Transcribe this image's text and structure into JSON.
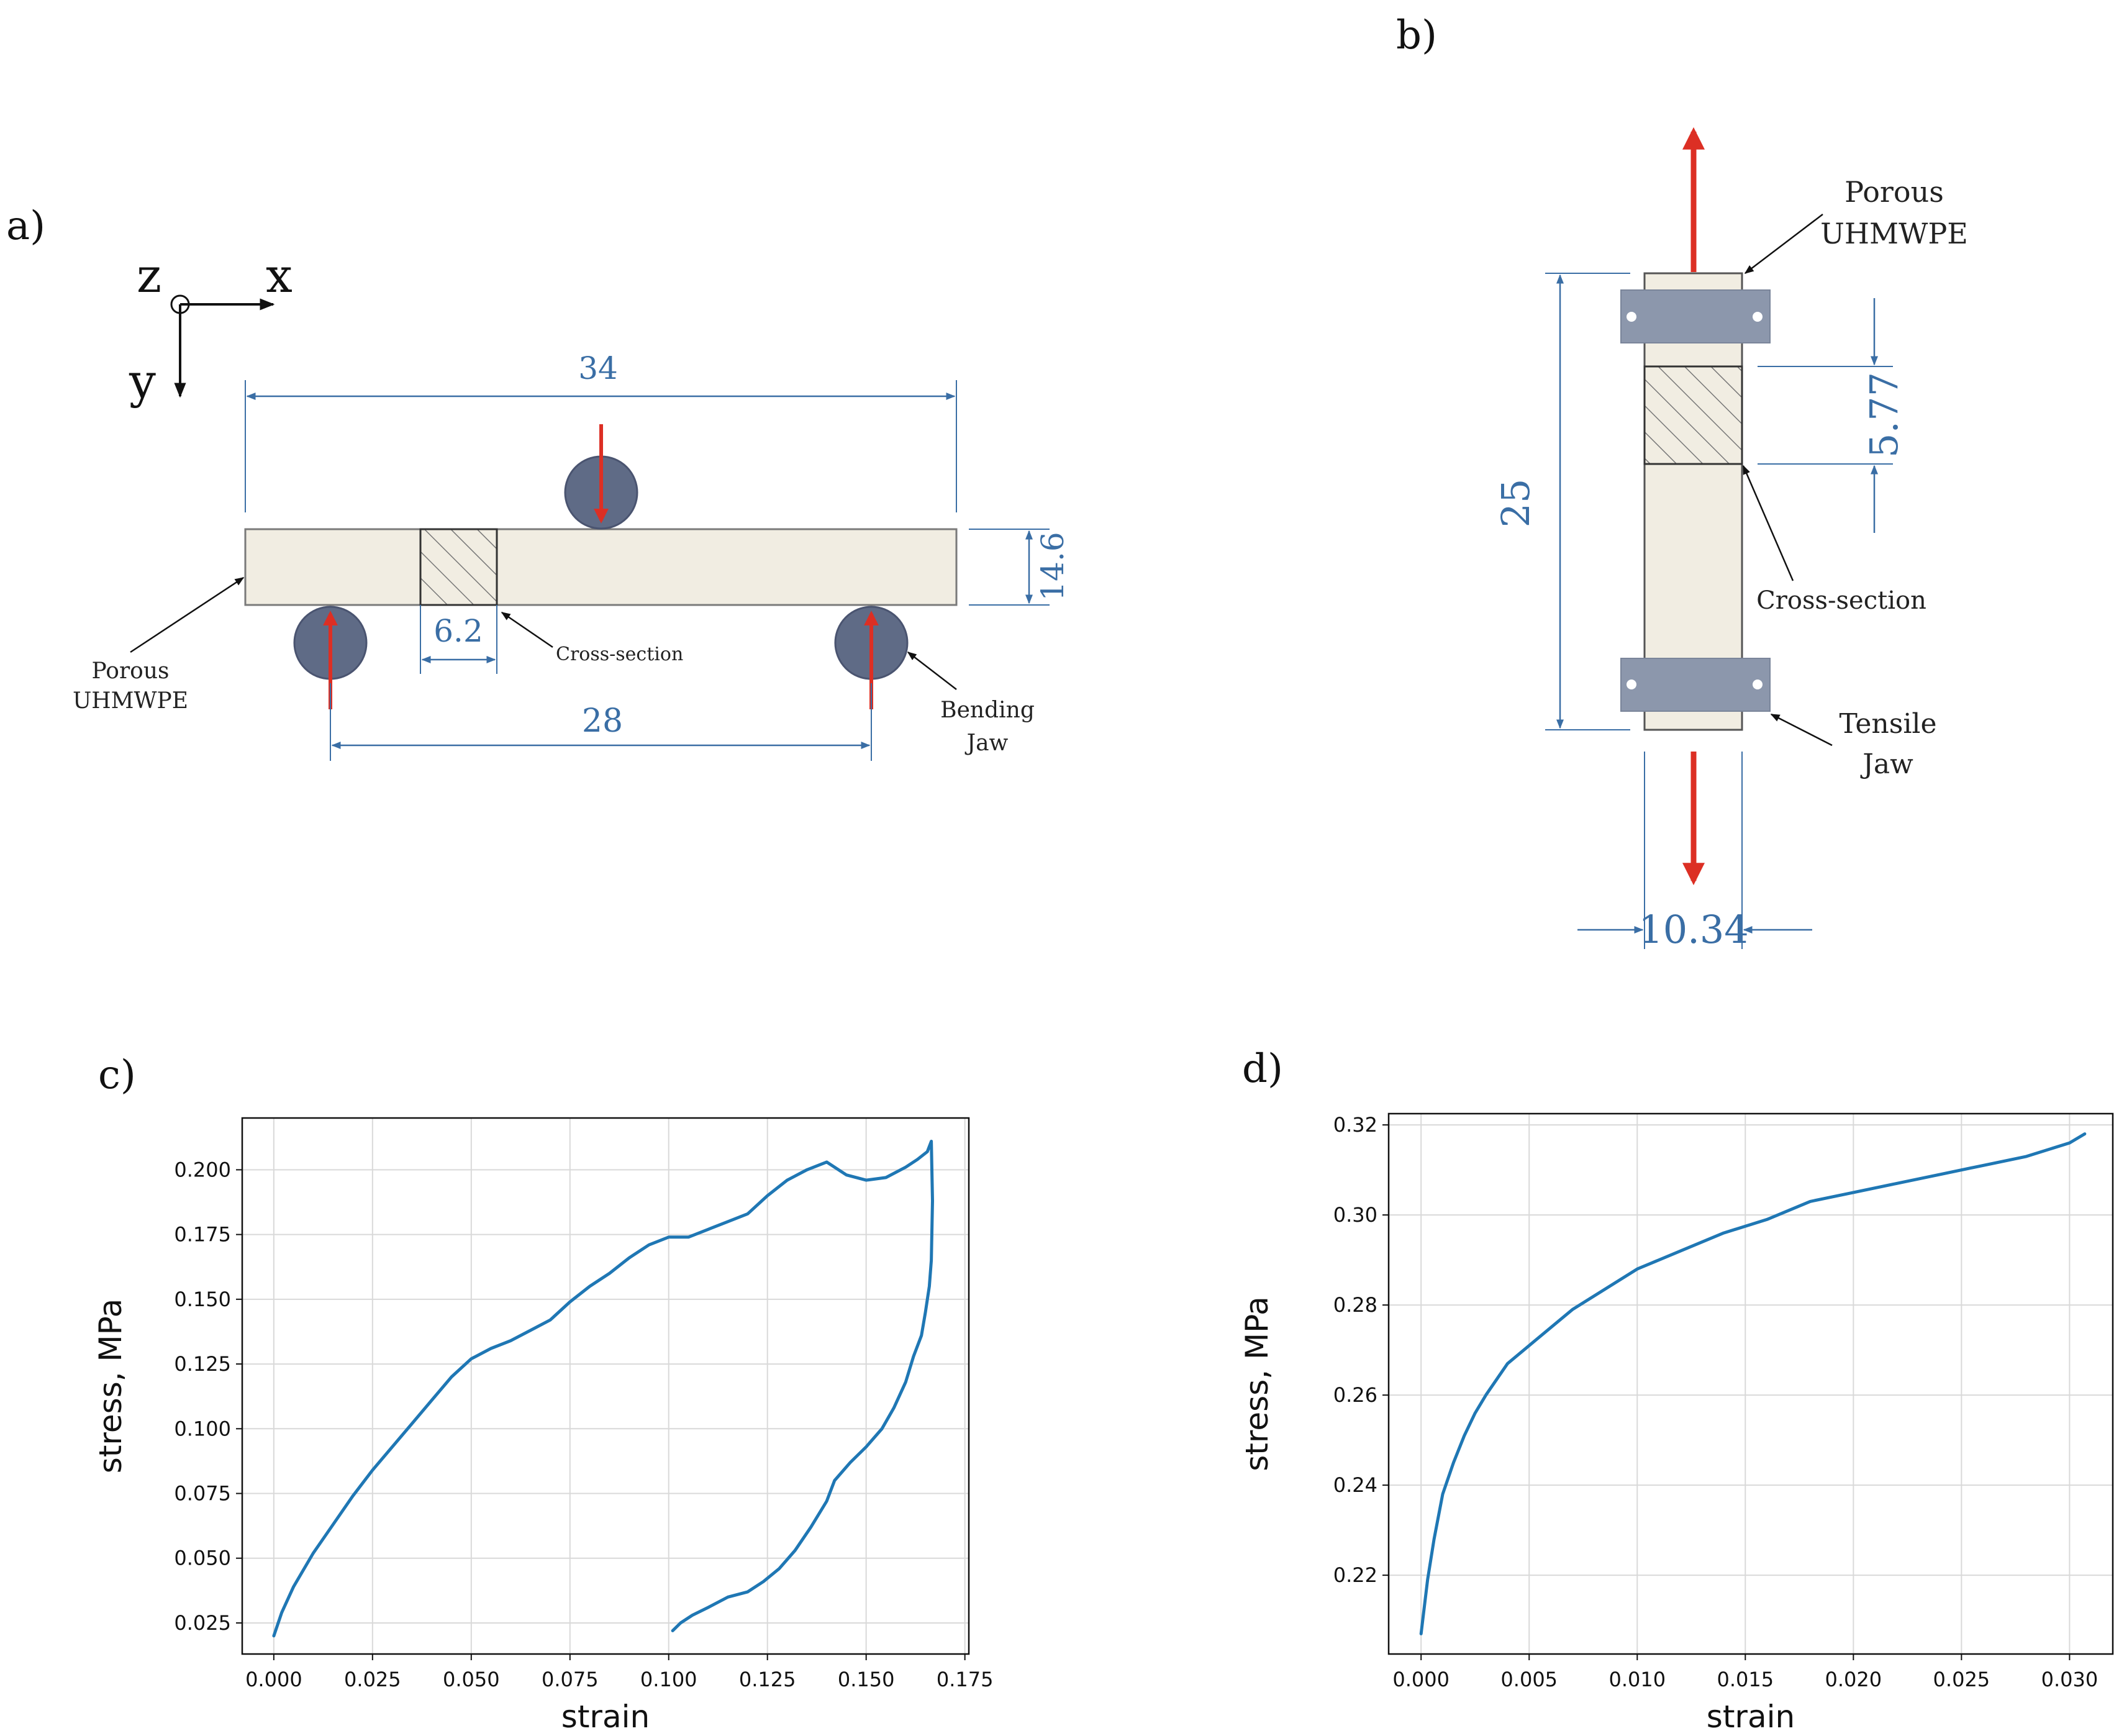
{
  "colors": {
    "dimension": "#3a6ea5",
    "force_arrow": "#dc2f24",
    "jaw_roller": "#5f6b86",
    "jaw_plate": "#8c97ac",
    "specimen_fill": "#f1ede2",
    "line_series": "#1f77b4",
    "grid": "#d9d9d9"
  },
  "panel_a": {
    "label": "a)",
    "axes": {
      "x": "x",
      "y": "y",
      "z": "z"
    },
    "dim_length": "34",
    "dim_height": "14.6",
    "dim_cross": "6.2",
    "dim_span": "28",
    "callout_specimen_line1": "Porous",
    "callout_specimen_line2": "UHMWPE",
    "callout_cross": "Cross-section",
    "callout_jaw_line1": "Bending",
    "callout_jaw_line2": "Jaw"
  },
  "panel_b": {
    "label": "b)",
    "dim_length": "25",
    "dim_cross": "5.77",
    "dim_width": "10.34",
    "callout_specimen_line1": "Porous",
    "callout_specimen_line2": "UHMWPE",
    "callout_cross": "Cross-section",
    "callout_jaw_line1": "Tensile",
    "callout_jaw_line2": "Jaw"
  },
  "chart_data": [
    {
      "panel_label": "c)",
      "type": "line",
      "xlabel": "strain",
      "ylabel": "stress, MPa",
      "xlim": [
        -0.008,
        0.176
      ],
      "ylim": [
        0.013,
        0.22
      ],
      "xticks": [
        "0.000",
        "0.025",
        "0.050",
        "0.075",
        "0.100",
        "0.125",
        "0.150",
        "0.175"
      ],
      "yticks": [
        "0.025",
        "0.050",
        "0.075",
        "0.100",
        "0.125",
        "0.150",
        "0.175",
        "0.200"
      ],
      "grid": true,
      "series": [
        {
          "x": [
            0.0,
            0.002,
            0.005,
            0.01,
            0.015,
            0.02,
            0.025,
            0.03,
            0.035,
            0.04,
            0.045,
            0.05,
            0.055,
            0.06,
            0.065,
            0.07,
            0.075,
            0.08,
            0.085,
            0.09,
            0.095,
            0.1,
            0.105,
            0.11,
            0.115,
            0.12,
            0.125,
            0.13,
            0.135,
            0.14,
            0.145,
            0.15,
            0.155,
            0.16,
            0.163,
            0.1655,
            0.1665,
            0.1668,
            0.1665,
            0.166,
            0.165,
            0.164,
            0.162,
            0.16,
            0.157,
            0.154,
            0.15,
            0.146,
            0.142,
            0.14,
            0.136,
            0.132,
            0.128,
            0.124,
            0.12,
            0.115,
            0.11,
            0.106,
            0.103,
            0.101
          ],
          "y": [
            0.02,
            0.029,
            0.039,
            0.052,
            0.063,
            0.074,
            0.084,
            0.093,
            0.102,
            0.111,
            0.12,
            0.127,
            0.131,
            0.134,
            0.138,
            0.142,
            0.149,
            0.155,
            0.16,
            0.166,
            0.171,
            0.174,
            0.174,
            0.177,
            0.18,
            0.183,
            0.19,
            0.196,
            0.2,
            0.203,
            0.198,
            0.196,
            0.197,
            0.201,
            0.204,
            0.207,
            0.211,
            0.188,
            0.165,
            0.155,
            0.145,
            0.136,
            0.128,
            0.118,
            0.108,
            0.1,
            0.093,
            0.087,
            0.08,
            0.072,
            0.062,
            0.053,
            0.046,
            0.041,
            0.037,
            0.035,
            0.031,
            0.028,
            0.025,
            0.022
          ]
        }
      ]
    },
    {
      "panel_label": "d)",
      "type": "line",
      "xlabel": "strain",
      "ylabel": "stress, MPa",
      "xlim": [
        -0.0015,
        0.032
      ],
      "ylim": [
        0.2025,
        0.3225
      ],
      "xticks": [
        "0.000",
        "0.005",
        "0.010",
        "0.015",
        "0.020",
        "0.025",
        "0.030"
      ],
      "yticks": [
        "0.22",
        "0.24",
        "0.26",
        "0.28",
        "0.30",
        "0.32"
      ],
      "grid": true,
      "series": [
        {
          "x": [
            0.0,
            0.0003,
            0.0006,
            0.001,
            0.0015,
            0.002,
            0.0025,
            0.003,
            0.004,
            0.005,
            0.006,
            0.007,
            0.008,
            0.009,
            0.01,
            0.012,
            0.014,
            0.016,
            0.018,
            0.02,
            0.022,
            0.024,
            0.026,
            0.028,
            0.03,
            0.0307
          ],
          "y": [
            0.207,
            0.219,
            0.228,
            0.238,
            0.245,
            0.251,
            0.256,
            0.26,
            0.267,
            0.271,
            0.275,
            0.279,
            0.282,
            0.285,
            0.288,
            0.292,
            0.296,
            0.299,
            0.303,
            0.305,
            0.307,
            0.309,
            0.311,
            0.313,
            0.316,
            0.318
          ]
        }
      ]
    }
  ]
}
